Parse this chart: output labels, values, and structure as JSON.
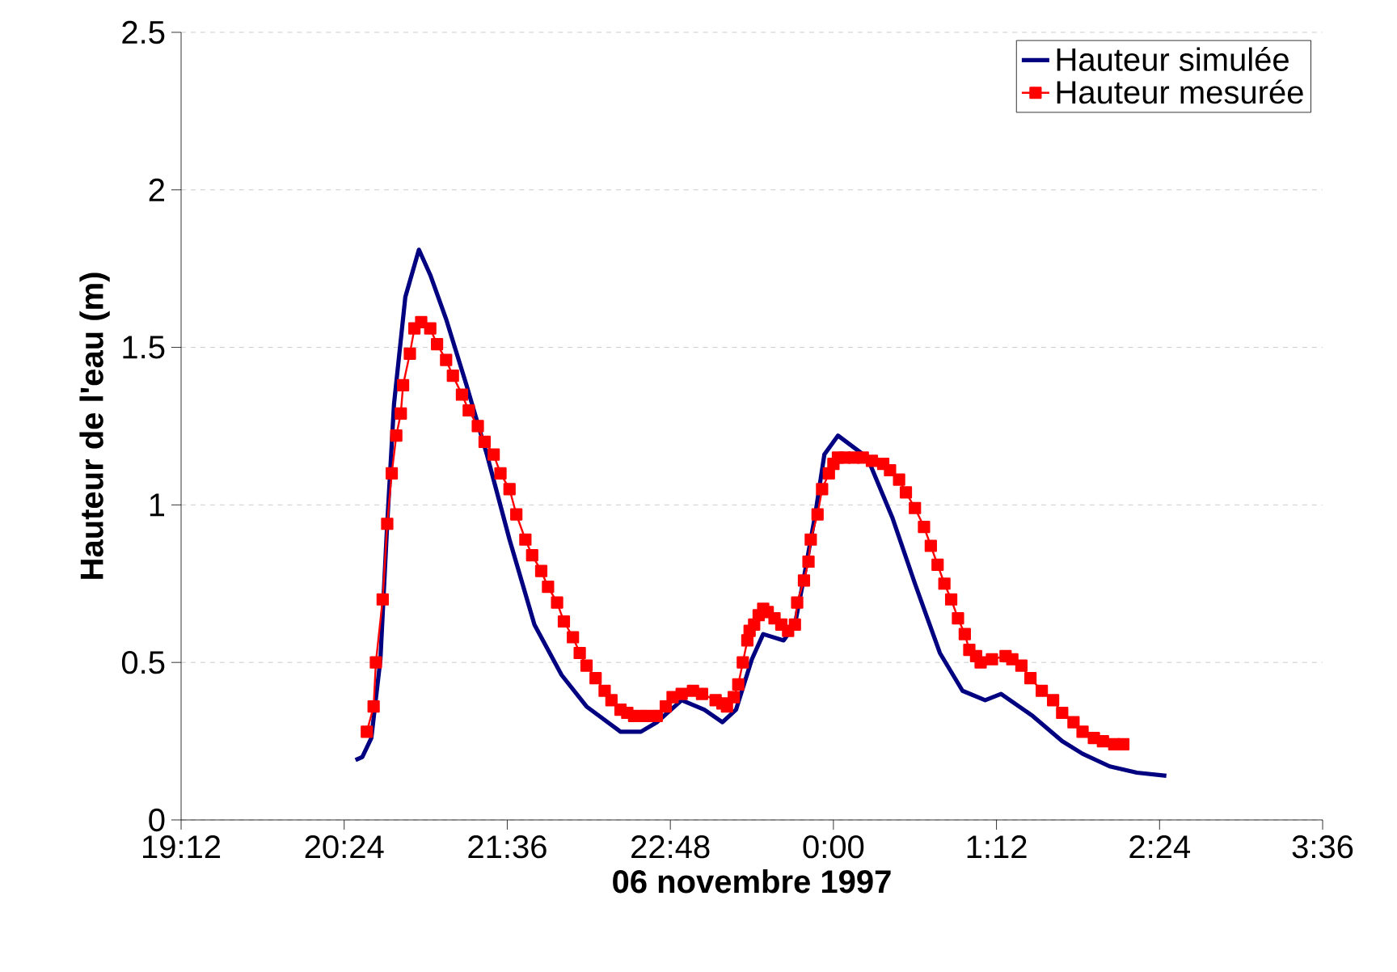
{
  "chart_data": {
    "type": "line",
    "xlabel": "06 novembre 1997",
    "ylabel": "Hauteur de l'eau (m)",
    "xlim": [
      "1997-11-06T19:12",
      "1997-11-07T03:36"
    ],
    "xticks": [
      {
        "value": "1997-11-06T19:12",
        "label": "19:12"
      },
      {
        "value": "1997-11-06T20:24",
        "label": "20:24"
      },
      {
        "value": "1997-11-06T21:36",
        "label": "21:36"
      },
      {
        "value": "1997-11-06T22:48",
        "label": "22:48"
      },
      {
        "value": "1997-11-07T00:00",
        "label": "0:00"
      },
      {
        "value": "1997-11-07T01:12",
        "label": "1:12"
      },
      {
        "value": "1997-11-07T02:24",
        "label": "2:24"
      },
      {
        "value": "1997-11-07T03:36",
        "label": "3:36"
      }
    ],
    "ylim": [
      0,
      2.5
    ],
    "yticks": [
      0,
      0.5,
      1,
      1.5,
      2,
      2.5
    ],
    "grid": "y",
    "legend": "top right",
    "series": [
      {
        "name": "Hauteur simulée",
        "color": "#000080",
        "marker": "none",
        "x": [
          "1997-11-06T20:29",
          "1997-11-06T20:32",
          "1997-11-06T20:36",
          "1997-11-06T20:40",
          "1997-11-06T20:43",
          "1997-11-06T20:46",
          "1997-11-06T20:51",
          "1997-11-06T20:57",
          "1997-11-06T21:02",
          "1997-11-06T21:09",
          "1997-11-06T21:18",
          "1997-11-06T21:27",
          "1997-11-06T21:37",
          "1997-11-06T21:48",
          "1997-11-06T22:00",
          "1997-11-06T22:11",
          "1997-11-06T22:26",
          "1997-11-06T22:35",
          "1997-11-06T22:42",
          "1997-11-06T22:53",
          "1997-11-06T23:03",
          "1997-11-06T23:11",
          "1997-11-06T23:17",
          "1997-11-06T23:24",
          "1997-11-06T23:29",
          "1997-11-06T23:38",
          "1997-11-06T23:43",
          "1997-11-06T23:47",
          "1997-11-06T23:52",
          "1997-11-06T23:56",
          "1997-11-07T00:02",
          "1997-11-07T00:15",
          "1997-11-07T00:26",
          "1997-11-07T00:36",
          "1997-11-07T00:47",
          "1997-11-07T00:57",
          "1997-11-07T01:07",
          "1997-11-07T01:14",
          "1997-11-07T01:28",
          "1997-11-07T01:41",
          "1997-11-07T01:50",
          "1997-11-07T02:02",
          "1997-11-07T02:14",
          "1997-11-07T02:27"
        ],
        "values": [
          0.19,
          0.2,
          0.26,
          0.51,
          0.94,
          1.32,
          1.66,
          1.81,
          1.73,
          1.59,
          1.38,
          1.16,
          0.89,
          0.62,
          0.46,
          0.36,
          0.28,
          0.28,
          0.31,
          0.38,
          0.35,
          0.31,
          0.35,
          0.51,
          0.59,
          0.57,
          0.62,
          0.77,
          0.97,
          1.16,
          1.22,
          1.15,
          0.96,
          0.75,
          0.53,
          0.41,
          0.38,
          0.4,
          0.33,
          0.25,
          0.21,
          0.17,
          0.15,
          0.14
        ]
      },
      {
        "name": "Hauteur mesurée",
        "color": "#ff0000",
        "marker": "square",
        "x": [
          "1997-11-06T20:34",
          "1997-11-06T20:37",
          "1997-11-06T20:38",
          "1997-11-06T20:41",
          "1997-11-06T20:43",
          "1997-11-06T20:45",
          "1997-11-06T20:47",
          "1997-11-06T20:49",
          "1997-11-06T20:50",
          "1997-11-06T20:53",
          "1997-11-06T20:55",
          "1997-11-06T20:58",
          "1997-11-06T21:02",
          "1997-11-06T21:05",
          "1997-11-06T21:09",
          "1997-11-06T21:12",
          "1997-11-06T21:16",
          "1997-11-06T21:19",
          "1997-11-06T21:23",
          "1997-11-06T21:26",
          "1997-11-06T21:30",
          "1997-11-06T21:33",
          "1997-11-06T21:37",
          "1997-11-06T21:40",
          "1997-11-06T21:44",
          "1997-11-06T21:47",
          "1997-11-06T21:51",
          "1997-11-06T21:54",
          "1997-11-06T21:58",
          "1997-11-06T22:01",
          "1997-11-06T22:05",
          "1997-11-06T22:08",
          "1997-11-06T22:11",
          "1997-11-06T22:15",
          "1997-11-06T22:19",
          "1997-11-06T22:22",
          "1997-11-06T22:26",
          "1997-11-06T22:29",
          "1997-11-06T22:32",
          "1997-11-06T22:37",
          "1997-11-06T22:42",
          "1997-11-06T22:46",
          "1997-11-06T22:49",
          "1997-11-06T22:53",
          "1997-11-06T22:58",
          "1997-11-06T23:02",
          "1997-11-06T23:08",
          "1997-11-06T23:11",
          "1997-11-06T23:13",
          "1997-11-06T23:16",
          "1997-11-06T23:18",
          "1997-11-06T23:20",
          "1997-11-06T23:22",
          "1997-11-06T23:23",
          "1997-11-06T23:25",
          "1997-11-06T23:27",
          "1997-11-06T23:29",
          "1997-11-06T23:31",
          "1997-11-06T23:34",
          "1997-11-06T23:37",
          "1997-11-06T23:40",
          "1997-11-06T23:43",
          "1997-11-06T23:44",
          "1997-11-06T23:47",
          "1997-11-06T23:49",
          "1997-11-06T23:50",
          "1997-11-06T23:53",
          "1997-11-06T23:55",
          "1997-11-06T23:58",
          "1997-11-07T00:00",
          "1997-11-07T00:02",
          "1997-11-07T00:05",
          "1997-11-07T00:09",
          "1997-11-07T00:13",
          "1997-11-07T00:17",
          "1997-11-07T00:22",
          "1997-11-07T00:25",
          "1997-11-07T00:29",
          "1997-11-07T00:32",
          "1997-11-07T00:36",
          "1997-11-07T00:40",
          "1997-11-07T00:43",
          "1997-11-07T00:46",
          "1997-11-07T00:49",
          "1997-11-07T00:52",
          "1997-11-07T00:55",
          "1997-11-07T00:58",
          "1997-11-07T01:00",
          "1997-11-07T01:03",
          "1997-11-07T01:05",
          "1997-11-07T01:10",
          "1997-11-07T01:16",
          "1997-11-07T01:19",
          "1997-11-07T01:23",
          "1997-11-07T01:27",
          "1997-11-07T01:32",
          "1997-11-07T01:37",
          "1997-11-07T01:41",
          "1997-11-07T01:46",
          "1997-11-07T01:50",
          "1997-11-07T01:55",
          "1997-11-07T01:59",
          "1997-11-07T02:04",
          "1997-11-07T02:08"
        ],
        "values": [
          0.28,
          0.36,
          0.5,
          0.7,
          0.94,
          1.1,
          1.22,
          1.29,
          1.38,
          1.48,
          1.56,
          1.58,
          1.56,
          1.51,
          1.46,
          1.41,
          1.35,
          1.3,
          1.25,
          1.2,
          1.16,
          1.1,
          1.05,
          0.97,
          0.89,
          0.84,
          0.79,
          0.74,
          0.69,
          0.63,
          0.58,
          0.53,
          0.49,
          0.45,
          0.41,
          0.38,
          0.35,
          0.34,
          0.33,
          0.33,
          0.33,
          0.36,
          0.39,
          0.4,
          0.41,
          0.4,
          0.38,
          0.37,
          0.36,
          0.39,
          0.43,
          0.5,
          0.57,
          0.6,
          0.62,
          0.65,
          0.67,
          0.66,
          0.64,
          0.62,
          0.6,
          0.62,
          0.69,
          0.76,
          0.82,
          0.89,
          0.97,
          1.05,
          1.1,
          1.13,
          1.15,
          1.15,
          1.15,
          1.15,
          1.14,
          1.13,
          1.11,
          1.08,
          1.04,
          0.99,
          0.93,
          0.87,
          0.81,
          0.75,
          0.7,
          0.64,
          0.59,
          0.54,
          0.52,
          0.5,
          0.51,
          0.52,
          0.51,
          0.49,
          0.45,
          0.41,
          0.38,
          0.34,
          0.31,
          0.28,
          0.26,
          0.25,
          0.24,
          0.24
        ]
      }
    ]
  }
}
